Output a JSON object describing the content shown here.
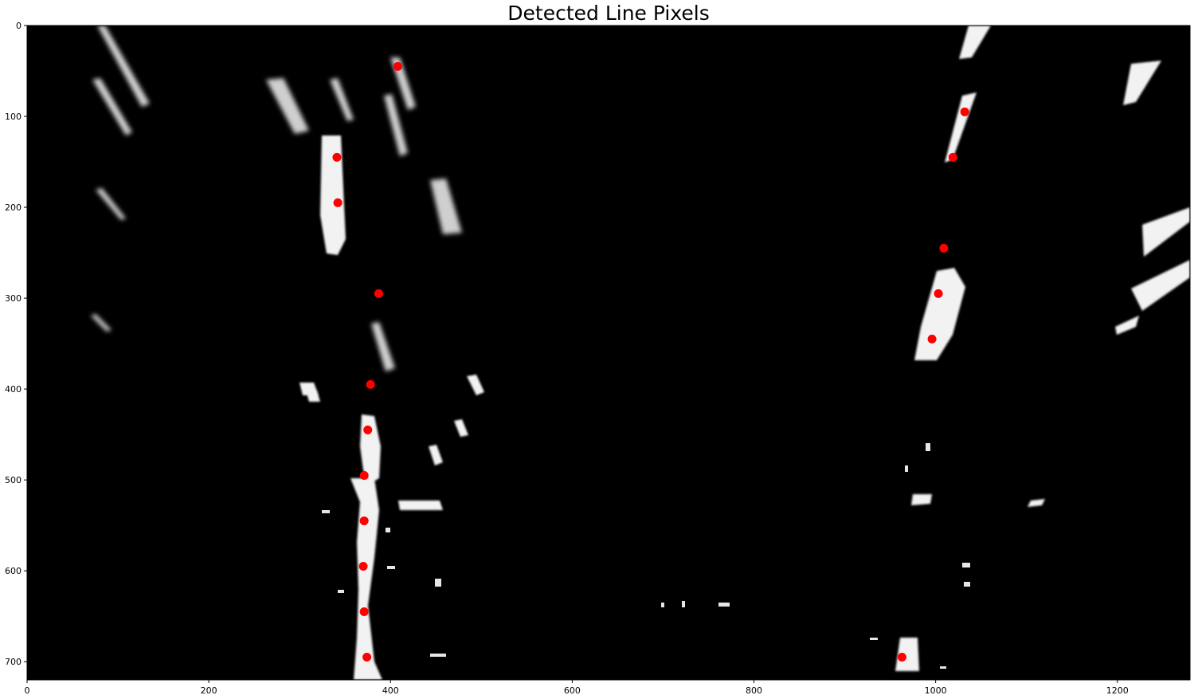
{
  "chart_data": {
    "type": "scatter",
    "title": "Detected Line Pixels",
    "xlabel": "",
    "ylabel": "",
    "xlim": [
      0,
      1280
    ],
    "ylim": [
      720,
      0
    ],
    "x_ticks": [
      "0",
      "200",
      "400",
      "600",
      "800",
      "1000",
      "1200"
    ],
    "y_ticks": [
      "0",
      "100",
      "200",
      "300",
      "400",
      "500",
      "600",
      "700"
    ],
    "background": "binary lane-line image (white pixels on black)",
    "marker_color": "#ff0000",
    "series": [
      {
        "values": [
          {
            "x": 408,
            "y": 45
          },
          {
            "x": 341,
            "y": 145
          },
          {
            "x": 342,
            "y": 195
          },
          {
            "x": 387,
            "y": 295
          },
          {
            "x": 378,
            "y": 395
          },
          {
            "x": 375,
            "y": 445
          },
          {
            "x": 371,
            "y": 495
          },
          {
            "x": 371,
            "y": 545
          },
          {
            "x": 370,
            "y": 595
          },
          {
            "x": 371,
            "y": 645
          },
          {
            "x": 374,
            "y": 695
          }
        ]
      },
      {
        "values": [
          {
            "x": 1032,
            "y": 95
          },
          {
            "x": 1019,
            "y": 145
          },
          {
            "x": 1009,
            "y": 245
          },
          {
            "x": 1003,
            "y": 295
          },
          {
            "x": 996,
            "y": 345
          },
          {
            "x": 963,
            "y": 695
          }
        ]
      }
    ]
  }
}
